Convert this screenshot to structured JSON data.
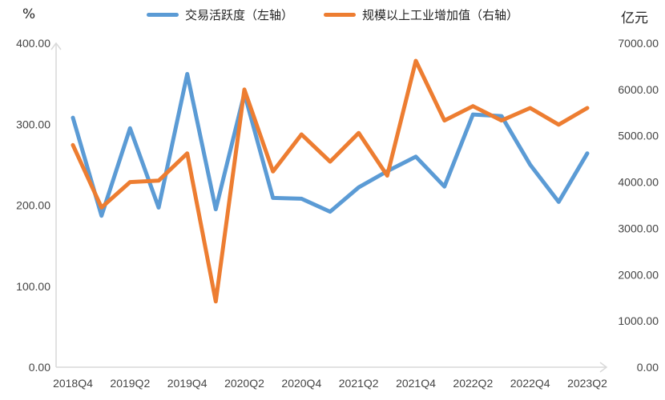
{
  "chart_data": {
    "type": "line",
    "categories": [
      "2018Q4",
      "2019Q1",
      "2019Q2",
      "2019Q3",
      "2019Q4",
      "2020Q1",
      "2020Q2",
      "2020Q3",
      "2020Q4",
      "2021Q1",
      "2021Q2",
      "2021Q3",
      "2021Q4",
      "2022Q1",
      "2022Q2",
      "2022Q3",
      "2022Q4",
      "2023Q1",
      "2023Q2"
    ],
    "tick_labels": [
      "2018Q4",
      "2019Q2",
      "2019Q4",
      "2020Q2",
      "2020Q4",
      "2021Q2",
      "2021Q4",
      "2022Q2",
      "2022Q4",
      "2023Q2"
    ],
    "left_unit": "%",
    "right_unit": "亿元",
    "left_ylim": [
      0,
      400
    ],
    "right_ylim": [
      0,
      7000
    ],
    "left_ticks": [
      "0.00",
      "100.00",
      "200.00",
      "300.00",
      "400.00"
    ],
    "right_ticks": [
      "0.00",
      "1000.00",
      "2000.00",
      "3000.00",
      "4000.00",
      "5000.00",
      "6000.00",
      "7000.00"
    ],
    "series": [
      {
        "name": "交易活跃度（左轴）",
        "axis": "left",
        "color": "#5B9BD5",
        "values": [
          308,
          187,
          295,
          197,
          362,
          195,
          338,
          209,
          208,
          192,
          222,
          242,
          260,
          223,
          312,
          310,
          250,
          204,
          264
        ]
      },
      {
        "name": "规模以上工业增加值（右轴）",
        "axis": "right",
        "color": "#ED7D31",
        "values": [
          4800,
          3450,
          4000,
          4030,
          4620,
          1420,
          6000,
          4230,
          5030,
          4440,
          5060,
          4140,
          6620,
          5330,
          5640,
          5330,
          5600,
          5240,
          5600
        ]
      }
    ]
  }
}
